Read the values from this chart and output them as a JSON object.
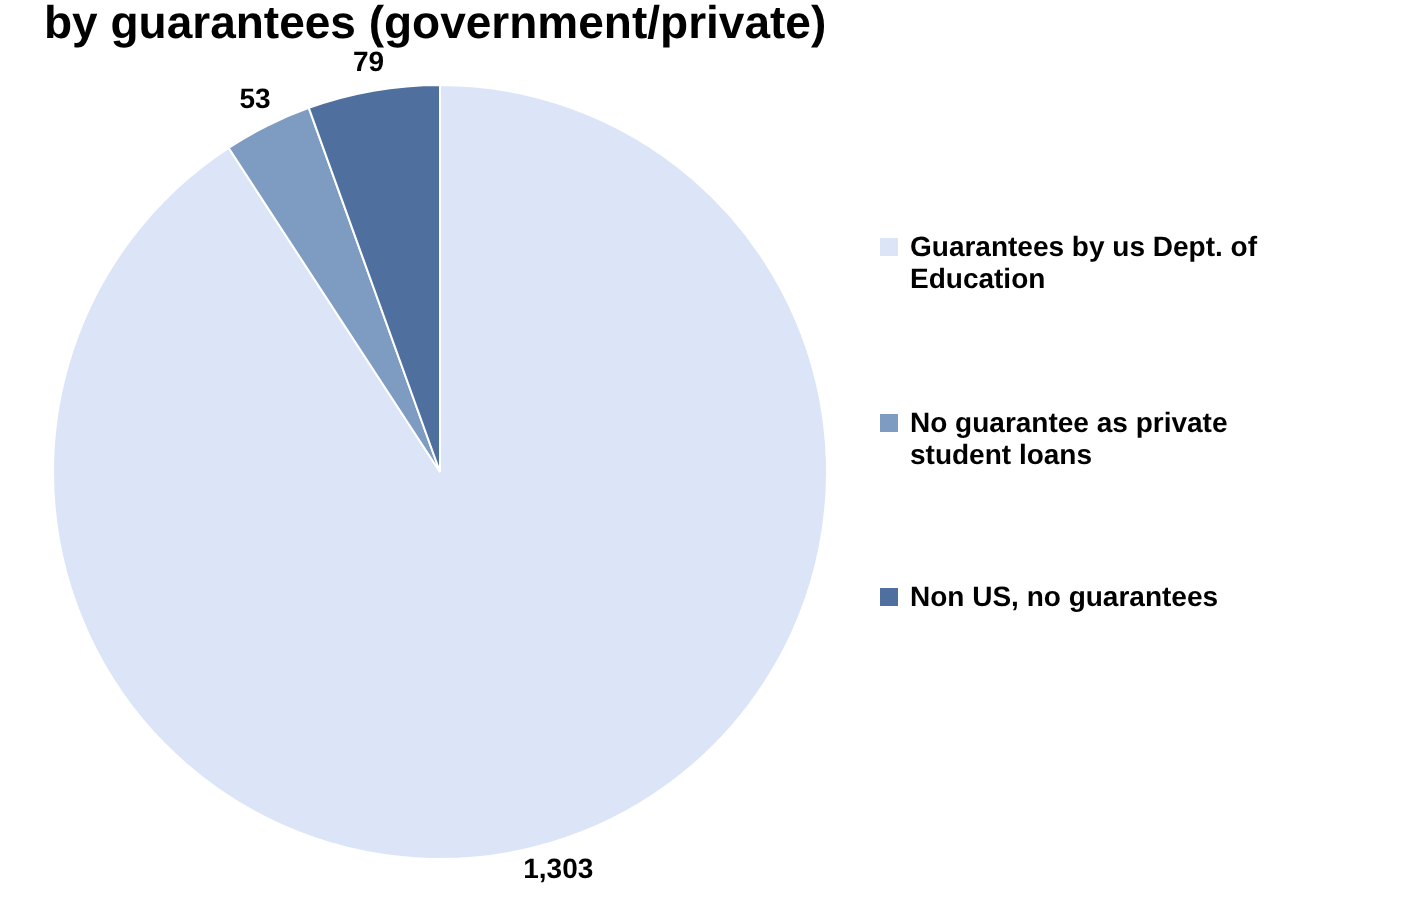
{
  "chart_data": {
    "type": "pie",
    "title": "by guarantees (government/private)",
    "categories": [
      "Guarantees by us Dept. of Education",
      "No guarantee as private student loans",
      "Non US, no guarantees"
    ],
    "values": [
      1303,
      53,
      79
    ],
    "colors": [
      "#dce5f8",
      "#7e9cc2",
      "#4f709e"
    ],
    "value_labels": [
      "1,303",
      "53",
      "79"
    ],
    "legend": "right"
  }
}
